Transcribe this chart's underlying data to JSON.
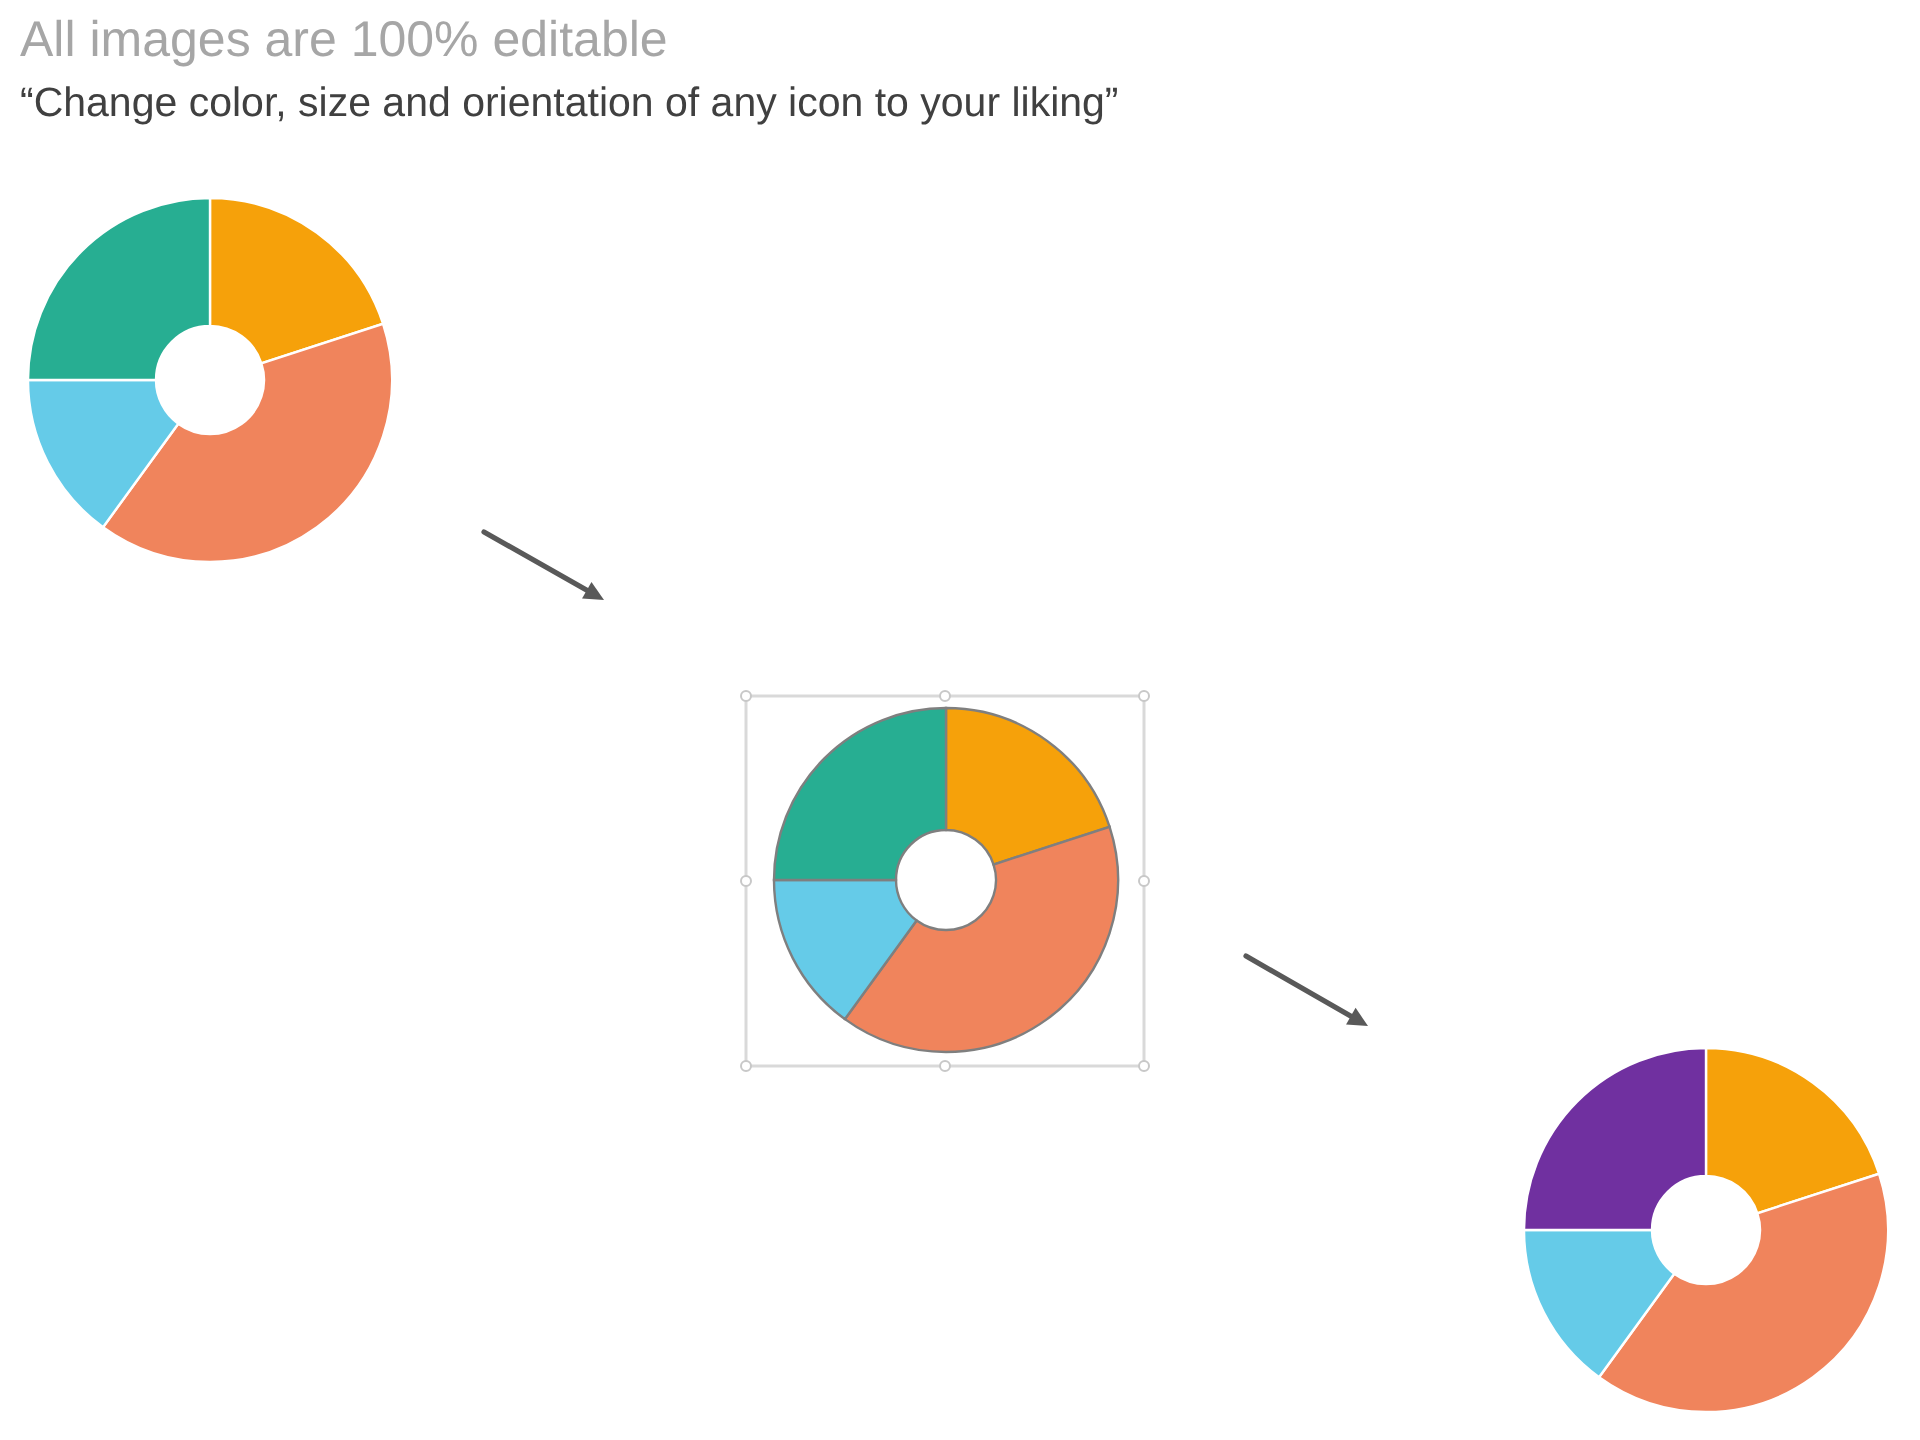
{
  "chart_data": [
    {
      "type": "donut",
      "title": "All images are 100% editable",
      "subtitle": "“Change color, size and orientation of any icon to your liking”",
      "categories": [
        null,
        null,
        null,
        null
      ],
      "values": [
        20,
        40,
        15,
        25
      ],
      "colors": [
        "#f6a10a",
        "#f0845c",
        "#65cbe8",
        "#27ae92"
      ]
    },
    {
      "type": "donut",
      "categories": [
        null,
        null,
        null,
        null
      ],
      "values": [
        20,
        40,
        15,
        25
      ],
      "colors": [
        "#f6a10a",
        "#f0845c",
        "#65cbe8",
        "#27ae92"
      ]
    },
    {
      "type": "donut",
      "categories": [
        null,
        null,
        null,
        null
      ],
      "values": [
        20,
        40,
        15,
        25
      ],
      "colors": [
        "#f6a10a",
        "#f0845c",
        "#65cbe8",
        "#7030a0"
      ]
    }
  ]
}
